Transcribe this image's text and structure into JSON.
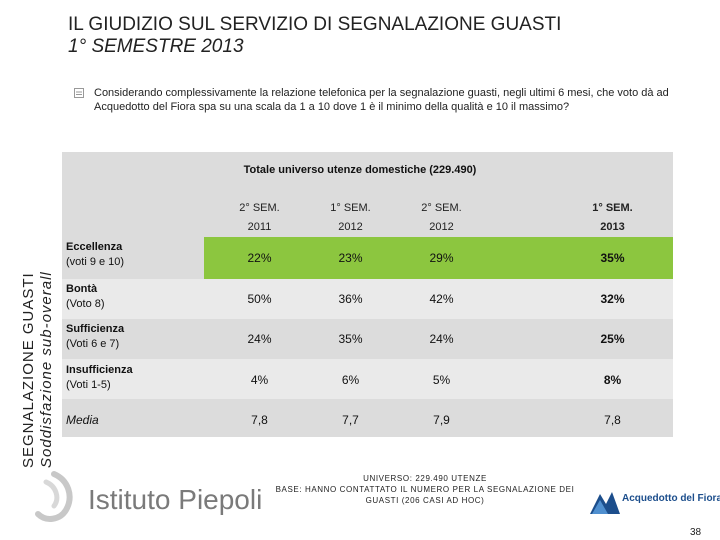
{
  "header": {
    "title_line1": "IL GIUDIZIO SUL SERVIZIO DI SEGNALAZIONE GUASTI",
    "title_line2": "1° SEMESTRE 2013"
  },
  "question": {
    "text": "Considerando complessivamente la relazione telefonica per la segnalazione guasti, negli ultimi 6 mesi, che voto dà ad Acquedotto del Fiora spa su una scala da 1 a 10 dove 1 è il minimo della qualità e 10 il massimo?"
  },
  "side_label": {
    "line1": "SEGNALAZIONE GUASTI",
    "line2": "Soddisfazione sub-overall"
  },
  "table": {
    "panel_title": "Totale universo utenze domestiche (229.490)",
    "columns": [
      {
        "line1": "2° SEM.",
        "line2": "2011"
      },
      {
        "line1": "1° SEM.",
        "line2": "2012"
      },
      {
        "line1": "2° SEM.",
        "line2": "2012"
      },
      {
        "line1": "1° SEM.",
        "line2": "2013"
      }
    ],
    "rows": [
      {
        "label": "Eccellenza",
        "sub": "(voti 9 e 10)",
        "values": [
          "22%",
          "23%",
          "29%",
          "35%"
        ]
      },
      {
        "label": "Bontà",
        "sub": "(Voto 8)",
        "values": [
          "50%",
          "36%",
          "42%",
          "32%"
        ]
      },
      {
        "label": "Sufficienza",
        "sub": "(Voti 6 e 7)",
        "values": [
          "24%",
          "35%",
          "24%",
          "25%"
        ]
      },
      {
        "label": "Insufficienza",
        "sub": "(Voti 1-5)",
        "values": [
          "4%",
          "6%",
          "5%",
          "8%"
        ]
      },
      {
        "label": "Media",
        "sub": "",
        "values": [
          "7,8",
          "7,7",
          "7,9",
          "7,8"
        ]
      }
    ]
  },
  "footer": {
    "note_line1": "UNIVERSO: 229.490 UTENZE",
    "note_line2": "BASE: HANNO CONTATTATO IL NUMERO PER LA SEGNALAZIONE DEI",
    "note_line3": "GUASTI (206 CASI AD HOC)",
    "logo_left": "Istituto Piepoli",
    "logo_right": "Acquedotto del Fiora",
    "page_number": "38"
  },
  "colors": {
    "highlight_green": "#8cc63f",
    "panel_gray": "#dcdcdc"
  }
}
